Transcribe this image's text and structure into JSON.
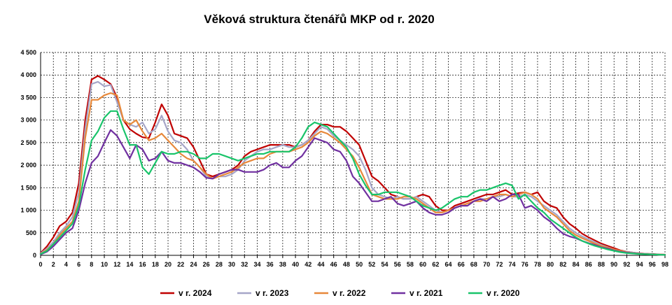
{
  "chart_data": {
    "type": "line",
    "title": "Věková struktura čtenářů MKP od r. 2020",
    "xlabel": "",
    "ylabel": "",
    "x": [
      0,
      1,
      2,
      3,
      4,
      5,
      6,
      7,
      8,
      9,
      10,
      11,
      12,
      13,
      14,
      15,
      16,
      17,
      18,
      19,
      20,
      21,
      22,
      23,
      24,
      25,
      26,
      27,
      28,
      29,
      30,
      31,
      32,
      33,
      34,
      35,
      36,
      37,
      38,
      39,
      40,
      41,
      42,
      43,
      44,
      45,
      46,
      47,
      48,
      49,
      50,
      51,
      52,
      53,
      54,
      55,
      56,
      57,
      58,
      59,
      60,
      61,
      62,
      63,
      64,
      65,
      66,
      67,
      68,
      69,
      70,
      71,
      72,
      73,
      74,
      75,
      76,
      77,
      78,
      79,
      80,
      81,
      82,
      83,
      84,
      85,
      86,
      87,
      88,
      89,
      90,
      91,
      92,
      93,
      94,
      95,
      96,
      97,
      98
    ],
    "xticks": [
      0,
      2,
      4,
      6,
      8,
      10,
      12,
      14,
      16,
      18,
      20,
      22,
      24,
      26,
      28,
      30,
      32,
      34,
      36,
      38,
      40,
      42,
      44,
      46,
      48,
      50,
      52,
      54,
      56,
      58,
      60,
      62,
      64,
      66,
      68,
      70,
      72,
      74,
      76,
      78,
      80,
      82,
      84,
      86,
      88,
      90,
      92,
      94,
      96,
      98
    ],
    "xlim": [
      0,
      98
    ],
    "ylim": [
      0,
      4500
    ],
    "yticks": [
      0,
      500,
      1000,
      1500,
      2000,
      2500,
      3000,
      3500,
      4000,
      4500
    ],
    "ytick_labels": [
      "0",
      "500",
      "1 000",
      "1 500",
      "2 000",
      "2 500",
      "3 000",
      "3 500",
      "4 000",
      "4 500"
    ],
    "grid": true,
    "legend_position": "bottom",
    "series": [
      {
        "name": "v r. 2024",
        "color": "#c00000",
        "values": [
          50,
          200,
          400,
          650,
          750,
          950,
          1600,
          3000,
          3900,
          3980,
          3900,
          3800,
          3500,
          3000,
          2800,
          2700,
          2620,
          2600,
          2950,
          3350,
          3100,
          2700,
          2650,
          2600,
          2400,
          2100,
          1800,
          1750,
          1800,
          1850,
          1900,
          2000,
          2200,
          2300,
          2350,
          2400,
          2450,
          2450,
          2450,
          2450,
          2400,
          2450,
          2550,
          2750,
          2900,
          2900,
          2850,
          2850,
          2750,
          2600,
          2450,
          2100,
          1750,
          1650,
          1500,
          1350,
          1300,
          1250,
          1250,
          1300,
          1350,
          1300,
          1100,
          1000,
          1000,
          1100,
          1150,
          1200,
          1250,
          1300,
          1350,
          1350,
          1400,
          1450,
          1350,
          1380,
          1400,
          1350,
          1400,
          1200,
          1100,
          1050,
          850,
          700,
          600,
          480,
          400,
          330,
          260,
          210,
          160,
          110,
          80,
          60,
          45,
          35,
          30,
          20,
          15
        ]
      },
      {
        "name": "v r. 2023",
        "color": "#a6a6c8",
        "values": [
          40,
          150,
          300,
          500,
          650,
          850,
          1400,
          2800,
          3800,
          3850,
          3750,
          3780,
          3400,
          3000,
          2900,
          2850,
          2950,
          2700,
          2800,
          3100,
          2750,
          2550,
          2500,
          2350,
          2100,
          1950,
          1750,
          1700,
          1750,
          1750,
          1800,
          1900,
          2100,
          2200,
          2300,
          2350,
          2350,
          2400,
          2450,
          2400,
          2400,
          2450,
          2550,
          2700,
          2850,
          2800,
          2650,
          2550,
          2450,
          2350,
          2200,
          1900,
          1500,
          1350,
          1300,
          1250,
          1300,
          1250,
          1250,
          1300,
          1200,
          1100,
          1000,
          950,
          1000,
          1050,
          1100,
          1150,
          1200,
          1250,
          1250,
          1300,
          1300,
          1350,
          1300,
          1300,
          1350,
          1300,
          1200,
          1100,
          1000,
          900,
          750,
          600,
          500,
          420,
          350,
          290,
          230,
          180,
          130,
          100,
          80,
          60,
          45,
          35,
          25,
          15,
          10
        ]
      },
      {
        "name": "v r. 2022",
        "color": "#e7883a",
        "values": [
          30,
          120,
          250,
          450,
          600,
          750,
          1200,
          2600,
          3450,
          3450,
          3550,
          3600,
          3550,
          3000,
          2900,
          3000,
          2750,
          2550,
          2600,
          2700,
          2550,
          2400,
          2250,
          2150,
          2100,
          1950,
          1800,
          1700,
          1750,
          1800,
          1850,
          1950,
          2050,
          2100,
          2150,
          2150,
          2250,
          2300,
          2300,
          2300,
          2350,
          2400,
          2500,
          2650,
          2750,
          2700,
          2600,
          2500,
          2350,
          2200,
          1950,
          1650,
          1350,
          1300,
          1250,
          1250,
          1250,
          1300,
          1300,
          1250,
          1150,
          1050,
          950,
          950,
          1000,
          1050,
          1100,
          1150,
          1200,
          1200,
          1250,
          1300,
          1350,
          1350,
          1300,
          1350,
          1400,
          1350,
          1250,
          1050,
          950,
          850,
          700,
          550,
          450,
          380,
          320,
          260,
          210,
          170,
          130,
          100,
          70,
          50,
          40,
          30,
          20,
          15,
          10
        ]
      },
      {
        "name": "v r. 2021",
        "color": "#7030a0",
        "values": [
          20,
          80,
          200,
          350,
          500,
          600,
          1000,
          1600,
          2050,
          2200,
          2500,
          2780,
          2650,
          2400,
          2150,
          2450,
          2350,
          2100,
          2150,
          2300,
          2100,
          2050,
          2050,
          2000,
          1950,
          1850,
          1720,
          1700,
          1800,
          1850,
          1900,
          1900,
          1850,
          1850,
          1850,
          1900,
          2000,
          2050,
          1950,
          1950,
          2100,
          2200,
          2400,
          2600,
          2550,
          2500,
          2350,
          2300,
          2100,
          1750,
          1600,
          1400,
          1200,
          1200,
          1250,
          1300,
          1150,
          1100,
          1150,
          1200,
          1050,
          950,
          900,
          900,
          950,
          1050,
          1100,
          1100,
          1200,
          1250,
          1200,
          1300,
          1200,
          1250,
          1350,
          1350,
          1050,
          1100,
          1000,
          850,
          750,
          600,
          480,
          420,
          380,
          320,
          270,
          230,
          180,
          150,
          110,
          80,
          60,
          45,
          35,
          25,
          20,
          15,
          10
        ]
      },
      {
        "name": "v r. 2020",
        "color": "#19c46a",
        "values": [
          30,
          100,
          250,
          400,
          550,
          700,
          1100,
          1900,
          2550,
          2750,
          3050,
          3200,
          3200,
          2800,
          2450,
          2450,
          1950,
          1800,
          2050,
          2300,
          2250,
          2250,
          2300,
          2300,
          2250,
          2150,
          2150,
          2250,
          2250,
          2200,
          2150,
          2100,
          2150,
          2200,
          2250,
          2250,
          2300,
          2300,
          2300,
          2300,
          2400,
          2600,
          2850,
          2950,
          2900,
          2850,
          2700,
          2550,
          2400,
          2150,
          1800,
          1550,
          1350,
          1350,
          1400,
          1400,
          1400,
          1350,
          1300,
          1200,
          1100,
          1050,
          1000,
          1050,
          1150,
          1250,
          1300,
          1300,
          1400,
          1450,
          1450,
          1500,
          1550,
          1600,
          1550,
          1250,
          1350,
          1200,
          1050,
          950,
          800,
          700,
          600,
          500,
          400,
          320,
          260,
          210,
          170,
          130,
          100,
          70,
          50,
          40,
          30,
          25,
          20,
          15,
          10
        ]
      }
    ]
  }
}
